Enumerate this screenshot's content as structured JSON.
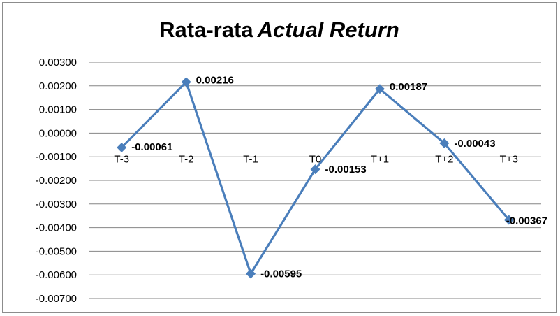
{
  "chart_data": {
    "type": "line",
    "title": "Rata-rata",
    "title_italic": "Actual Return",
    "xlabel": "",
    "ylabel": "",
    "categories": [
      "T-3",
      "T-2",
      "T-1",
      "T0",
      "T+1",
      "T+2",
      "T+3"
    ],
    "series": [
      {
        "values": [
          -0.00061,
          0.00216,
          -0.00595,
          -0.00153,
          0.00187,
          -0.00043,
          -0.00367
        ],
        "labels": [
          "-0.00061",
          "0.00216",
          "-0.00595",
          "-0.00153",
          "0.00187",
          "-0.00043",
          "-0.00367"
        ],
        "color": "#4a7ebb",
        "marker": "diamond"
      }
    ],
    "ylim": [
      -0.007,
      0.003
    ],
    "ystep": 0.001,
    "ytick_labels": [
      "0.00300",
      "0.00200",
      "0.00100",
      "0.00000",
      "-0.00100",
      "-0.00200",
      "-0.00300",
      "-0.00400",
      "-0.00500",
      "-0.00600",
      "-0.00700"
    ],
    "grid": true,
    "gridline_color": "#868686",
    "legend": "none"
  }
}
